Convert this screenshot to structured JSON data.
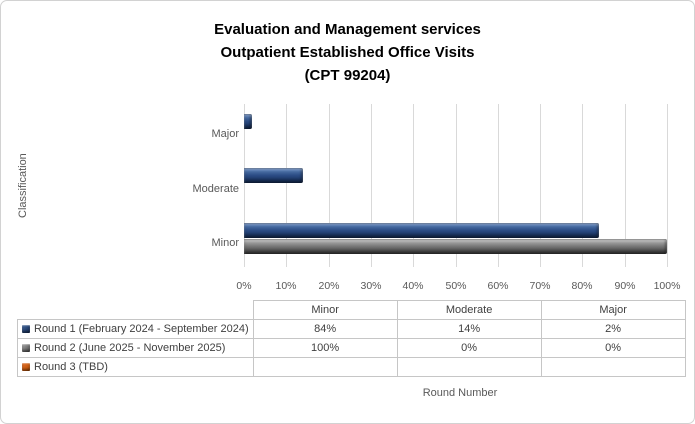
{
  "title": {
    "lines": [
      "Evaluation and Management services",
      "Outpatient Established Office Visits",
      "(CPT 99204)"
    ]
  },
  "chart_data": {
    "type": "bar",
    "orientation": "horizontal",
    "title": "Evaluation and Management services Outpatient Established Office Visits (CPT 99204)",
    "xlabel": "Round Number",
    "ylabel": "Classification",
    "x_axis": {
      "min": 0,
      "max": 100,
      "tick_labels": [
        "0%",
        "10%",
        "20%",
        "30%",
        "40%",
        "50%",
        "60%",
        "70%",
        "80%",
        "90%",
        "100%"
      ],
      "gridlines": true,
      "gridline_color": "#d9d9d9"
    },
    "categories": [
      "Minor",
      "Moderate",
      "Major"
    ],
    "category_display_order_top_to_bottom": [
      "Major",
      "Moderate",
      "Minor"
    ],
    "series": [
      {
        "name": "Round 1 (February 2024 - September 2024)",
        "color": "#1f3864",
        "values": [
          84,
          14,
          2
        ],
        "display_values": [
          "84%",
          "14%",
          "2%"
        ]
      },
      {
        "name": "Round 2 (June 2025 - November 2025)",
        "color": "#636363",
        "values": [
          100,
          0,
          0
        ],
        "display_values": [
          "100%",
          "0%",
          "0%"
        ]
      },
      {
        "name": "Round 3 (TBD)",
        "color": "#c55a11",
        "values": [
          null,
          null,
          null
        ],
        "display_values": [
          "",
          "",
          ""
        ]
      }
    ],
    "legend_position": "data-table-left",
    "data_table": true,
    "axis_text_color": "#595959",
    "table_text_color": "#404040"
  }
}
